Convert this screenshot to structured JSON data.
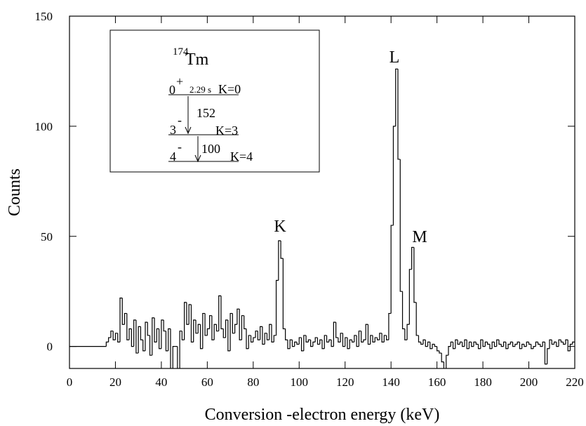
{
  "chart_data": {
    "type": "histogram",
    "x_label": "Conversion -electron energy (keV)",
    "y_label": "Counts",
    "color": "#000000",
    "xlim": [
      0,
      220
    ],
    "xticks": [
      0,
      20,
      40,
      60,
      80,
      100,
      120,
      140,
      160,
      180,
      200,
      220
    ],
    "ylim": [
      -10,
      150
    ],
    "yticks": [
      0,
      50,
      100,
      150
    ],
    "bins": [
      0,
      16,
      17,
      18,
      19,
      20,
      21,
      22,
      23,
      24,
      25,
      26,
      27,
      28,
      29,
      30,
      31,
      32,
      33,
      34,
      35,
      36,
      37,
      38,
      39,
      40,
      41,
      42,
      43,
      44,
      45,
      46,
      47,
      48,
      49,
      50,
      51,
      52,
      53,
      54,
      55,
      56,
      57,
      58,
      59,
      60,
      61,
      62,
      63,
      64,
      65,
      66,
      67,
      68,
      69,
      70,
      71,
      72,
      73,
      74,
      75,
      76,
      77,
      78,
      79,
      80,
      81,
      82,
      83,
      84,
      85,
      86,
      87,
      88,
      89,
      90,
      91,
      92,
      93,
      94,
      95,
      96,
      97,
      98,
      99,
      100,
      101,
      102,
      103,
      104,
      105,
      106,
      107,
      108,
      109,
      110,
      111,
      112,
      113,
      114,
      115,
      116,
      117,
      118,
      119,
      120,
      121,
      122,
      123,
      124,
      125,
      126,
      127,
      128,
      129,
      130,
      131,
      132,
      133,
      134,
      135,
      136,
      137,
      138,
      139,
      140,
      141,
      142,
      143,
      144,
      145,
      146,
      147,
      148,
      149,
      150,
      151,
      152,
      153,
      154,
      155,
      156,
      157,
      158,
      159,
      160,
      161,
      162,
      163,
      164,
      165,
      166,
      167,
      168,
      169,
      170,
      171,
      172,
      173,
      174,
      175,
      176,
      177,
      178,
      179,
      180,
      181,
      182,
      183,
      184,
      185,
      186,
      187,
      188,
      189,
      190,
      191,
      192,
      193,
      194,
      195,
      196,
      197,
      198,
      199,
      200,
      201,
      202,
      203,
      204,
      205,
      206,
      207,
      208,
      209,
      210,
      211,
      212,
      213,
      214,
      215,
      216,
      217,
      218,
      219,
      220
    ],
    "values": [
      0,
      2,
      4,
      7,
      3,
      6,
      2,
      22,
      10,
      15,
      3,
      8,
      0,
      12,
      -3,
      9,
      3,
      -2,
      11,
      5,
      -4,
      13,
      2,
      8,
      -1,
      12,
      7,
      -2,
      8,
      -15,
      0,
      0,
      -12,
      7,
      3,
      20,
      10,
      19,
      2,
      12,
      6,
      10,
      -1,
      15,
      5,
      8,
      14,
      3,
      10,
      7,
      23,
      8,
      4,
      12,
      -2,
      15,
      6,
      10,
      17,
      3,
      14,
      8,
      -1,
      5,
      2,
      4,
      7,
      3,
      9,
      1,
      6,
      3,
      10,
      2,
      5,
      30,
      48,
      40,
      8,
      3,
      -1,
      3,
      0,
      2,
      1,
      4,
      -2,
      5,
      2,
      3,
      0,
      2,
      4,
      1,
      3,
      -1,
      5,
      2,
      3,
      0,
      11,
      4,
      2,
      6,
      0,
      4,
      -1,
      3,
      2,
      5,
      0,
      7,
      2,
      3,
      10,
      1,
      5,
      2,
      4,
      3,
      6,
      2,
      5,
      3,
      15,
      55,
      100,
      126,
      85,
      25,
      8,
      3,
      10,
      35,
      45,
      20,
      5,
      2,
      1,
      3,
      0,
      2,
      -1,
      1,
      0,
      -2,
      -3,
      -7,
      -15,
      -4,
      0,
      2,
      -1,
      3,
      1,
      2,
      0,
      3,
      -1,
      2,
      0,
      2,
      1,
      -1,
      3,
      0,
      2,
      1,
      -1,
      2,
      0,
      3,
      1,
      0,
      2,
      -1,
      1,
      2,
      0,
      1,
      2,
      -1,
      1,
      0,
      2,
      1,
      -1,
      0,
      2,
      1,
      0,
      2,
      -8,
      -1,
      3,
      1,
      2,
      0,
      3,
      2,
      1,
      3,
      -2,
      1,
      2
    ],
    "peak_labels": [
      "K",
      "L",
      "M"
    ],
    "inset": {
      "mass": "174",
      "element": "Tm",
      "levels": [
        {
          "spin": "0",
          "parity": "+",
          "k": "K=0"
        },
        {
          "spin": "3",
          "parity": "-",
          "k": "K=3"
        },
        {
          "spin": "4",
          "parity": "-",
          "k": "K=4"
        }
      ],
      "half_life": "2.29 s",
      "transitions": [
        "152",
        "100"
      ]
    }
  }
}
